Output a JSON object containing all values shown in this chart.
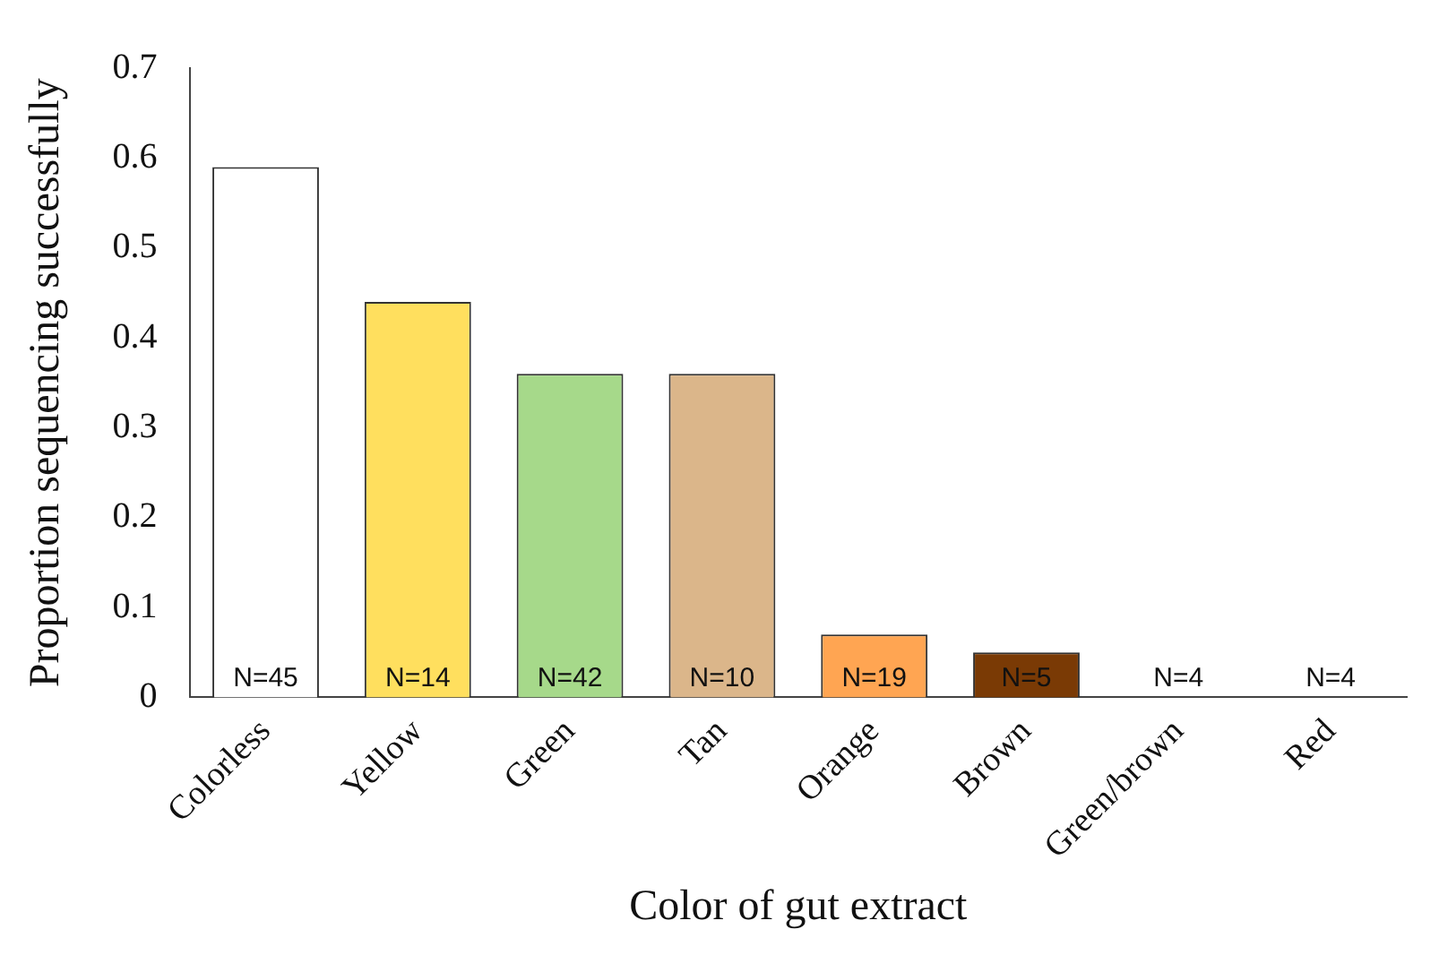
{
  "chart_data": {
    "type": "bar",
    "xlabel": "Color of gut extract",
    "ylabel": "Proportion sequencing successfully",
    "categories": [
      "Colorless",
      "Yellow",
      "Green",
      "Tan",
      "Orange",
      "Brown",
      "Green/brown",
      "Red"
    ],
    "values": [
      0.59,
      0.44,
      0.36,
      0.36,
      0.07,
      0.05,
      0,
      0
    ],
    "colors": [
      "#ffffff",
      "#ffdf5e",
      "#a6d98a",
      "#dbb68a",
      "#ffa552",
      "#7a3a05",
      "#ffffff",
      "#ffffff"
    ],
    "ylim": [
      0,
      0.7
    ],
    "yticks": [
      0,
      0.1,
      0.2,
      0.3,
      0.4,
      0.5,
      0.6,
      0.7
    ],
    "grid": false,
    "legend": false,
    "annotations": [
      {
        "text": "N=45",
        "x": "Colorless",
        "y": 0
      },
      {
        "text": "N=14",
        "x": "Yellow",
        "y": 0
      },
      {
        "text": "N=42",
        "x": "Green",
        "y": 0
      },
      {
        "text": "N=10",
        "x": "Tan",
        "y": 0
      },
      {
        "text": "N=19",
        "x": "Orange",
        "y": 0
      },
      {
        "text": "N=5",
        "x": "Brown",
        "y": 0
      },
      {
        "text": "N=4",
        "x": "Green/brown",
        "y": 0
      },
      {
        "text": "N=4",
        "x": "Red",
        "y": 0
      }
    ]
  }
}
